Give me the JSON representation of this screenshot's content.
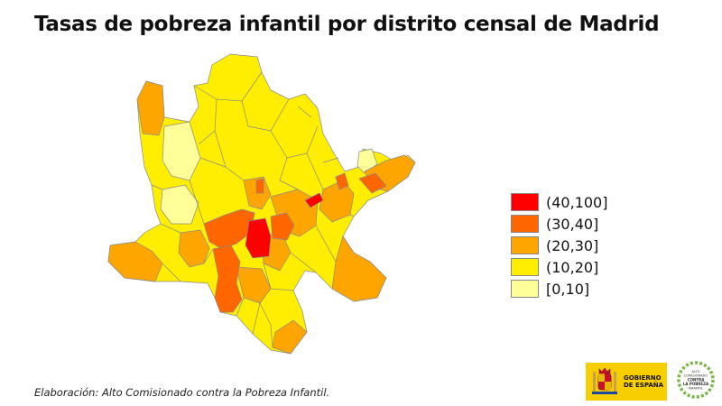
{
  "title": "Tasas de pobreza infantil por distrito censal de Madrid",
  "legend": {
    "items": [
      {
        "label": "(40,100]",
        "color": "#ff0000"
      },
      {
        "label": "(30,40]",
        "color": "#ff6600"
      },
      {
        "label": "(20,30]",
        "color": "#ffa500"
      },
      {
        "label": "(10,20]",
        "color": "#ffee00"
      },
      {
        "label": "[0,10]",
        "color": "#ffff99"
      }
    ]
  },
  "credit": "Elaboración: Alto Comisionado contra la Pobreza Infantil.",
  "logos": {
    "gobierno": [
      "GOBIERNO",
      "DE ESPAÑA"
    ],
    "alto_comisionado": [
      "ALTO",
      "COMISIONADO",
      "CONTRA",
      "LA POBREZA",
      "INFANTIL"
    ]
  },
  "colors": {
    "c1": "#ffff99",
    "c2": "#ffee00",
    "c3": "#ffa500",
    "c4": "#ff6600",
    "c5": "#ff0000",
    "border": "#8a8a8a",
    "gov_yellow": "#f7cf00",
    "ac_green": "#7ab648"
  }
}
